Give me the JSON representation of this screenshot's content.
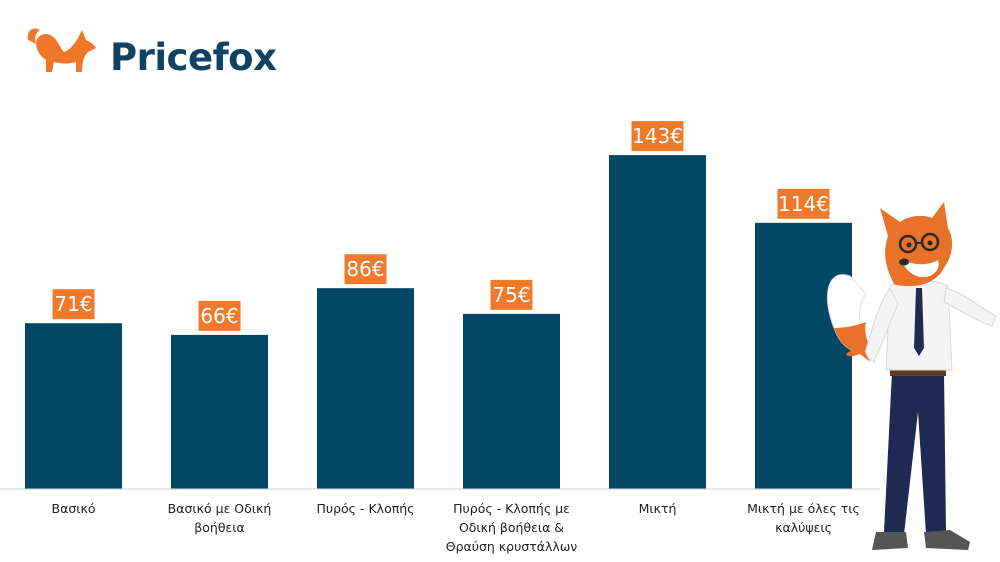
{
  "brand": {
    "name": "Pricefox",
    "logo_icon": "fox-logo-icon",
    "color_text": "#0f4263",
    "color_fox": "#f0772a"
  },
  "colors": {
    "bar": "#034766",
    "label_bg": "#f07a2c",
    "label_text": "#ffffff",
    "axis": "#cfcfcf"
  },
  "mascot": {
    "icon": "fox-mascot-icon"
  },
  "chart_data": {
    "type": "bar",
    "categories": [
      "Βασικό",
      "Βασικό με Οδική βοήθεια",
      "Πυρός - Κλοπής",
      "Πυρός - Κλοπής με Οδική βοήθεια & Θραύση κρυστάλλων",
      "Μικτή",
      "Μικτή με όλες τις καλύψεις"
    ],
    "category_lines": [
      [
        "Βασικό"
      ],
      [
        "Βασικό με Οδική",
        "βοήθεια"
      ],
      [
        "Πυρός - Κλοπής"
      ],
      [
        "Πυρός - Κλοπής με",
        "Οδική βοήθεια &",
        "Θραύση κρυστάλλων"
      ],
      [
        "Μικτή"
      ],
      [
        "Μικτή με όλες τις",
        "καλύψεις"
      ]
    ],
    "values": [
      71,
      66,
      86,
      75,
      143,
      114
    ],
    "value_labels": [
      "71€",
      "66€",
      "86€",
      "75€",
      "143€",
      "114€"
    ],
    "unit": "€",
    "ylim": [
      0,
      150
    ],
    "grid": false,
    "legend": "none"
  }
}
